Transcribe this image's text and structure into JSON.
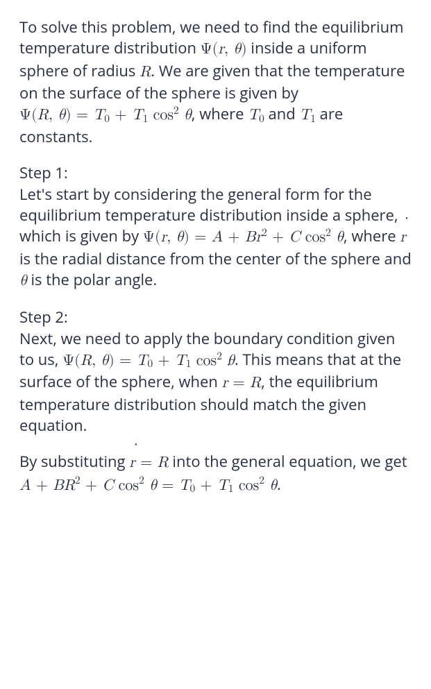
{
  "intro": {
    "t1": "To solve this problem, we need to find the equilibrium temperature distribution ",
    "eq1_a": "Ψ(",
    "eq1_r": "r",
    "eq1_b": ", ",
    "eq1_th": "θ",
    "eq1_c": ")",
    "t2": " inside a uniform sphere of radius ",
    "eq2_R": "R",
    "t3": ". We are given that the temperature on the surface of the sphere is given by ",
    "eq3_a": "Ψ(",
    "eq3_R": "R",
    "eq3_b": ", ",
    "eq3_th": "θ",
    "eq3_c": ") = ",
    "eq3_T": "T",
    "eq3_0": "0",
    "eq3_plus": " + ",
    "eq3_T1": "T",
    "eq3_1": "1",
    "eq3_cos": " cos",
    "eq3_cos2": "2",
    "eq3_sp": " ",
    "eq3_th2": "θ",
    "t4": ", where ",
    "eq4_T": "T",
    "eq4_0": "0",
    "t5": " and ",
    "eq5_T": "T",
    "eq5_1": "1",
    "t6": " are constants."
  },
  "step1": {
    "label": "Step 1:",
    "t1": "Let's start by considering the general form for the equilibrium temperature distribution inside a sphere, which is given by ",
    "eq1_a": "Ψ(",
    "eq1_r": "r",
    "eq1_b": ", ",
    "eq1_th": "θ",
    "eq1_c": ") = ",
    "eq1_A": "A",
    "eq1_p1": " + ",
    "eq1_B": "B",
    "eq1_r2": "r",
    "eq1_rexp": "2",
    "eq1_p2": " + ",
    "eq1_C": "C",
    "eq1_cos": " cos",
    "eq1_cos2": "2",
    "eq1_sp": " ",
    "eq1_th2": "θ",
    "t2": ", where ",
    "eq2_r": "r",
    "t3": " is the radial distance from the center of the sphere and ",
    "eq3_th": "θ",
    "t4": " is the polar angle."
  },
  "step2": {
    "label": "Step 2:",
    "t1": "Next, we need to apply the boundary condition given to us, ",
    "eq1_a": "Ψ(",
    "eq1_R": "R",
    "eq1_b": ", ",
    "eq1_th": "θ",
    "eq1_c": ") = ",
    "eq1_T": "T",
    "eq1_0": "0",
    "eq1_plus": " + ",
    "eq1_T1": "T",
    "eq1_1": "1",
    "eq1_cos": " cos",
    "eq1_cos2": "2",
    "eq1_sp": " ",
    "eq1_th2": "θ",
    "t2": ". This means that at the surface of the sphere, when ",
    "eq2_r": "r",
    "eq2_eq": " = ",
    "eq2_R": "R",
    "t3": ", the equilibrium temperature distribution should match the given equation."
  },
  "step2b": {
    "t1": "By substituting ",
    "eq1_r": "r",
    "eq1_eq": " = ",
    "eq1_R": "R",
    "t2": " into the general equation, we get ",
    "eq2_A": "A",
    "eq2_p1": " + ",
    "eq2_B": "B",
    "eq2_R": "R",
    "eq2_Rexp": "2",
    "eq2_p2": " + ",
    "eq2_C": "C",
    "eq2_cos": " cos",
    "eq2_cos2": "2",
    "eq2_sp": " ",
    "eq2_th": "θ",
    "eq2_eq": " = ",
    "eq2_T": "T",
    "eq2_0": "0",
    "eq2_plus": " + ",
    "eq2_T1": "T",
    "eq2_1": "1",
    "eq2_cosb": " cos",
    "eq2_cos2b": "2",
    "eq2_spb": " ",
    "eq2_th2": "θ",
    "t3": "."
  }
}
